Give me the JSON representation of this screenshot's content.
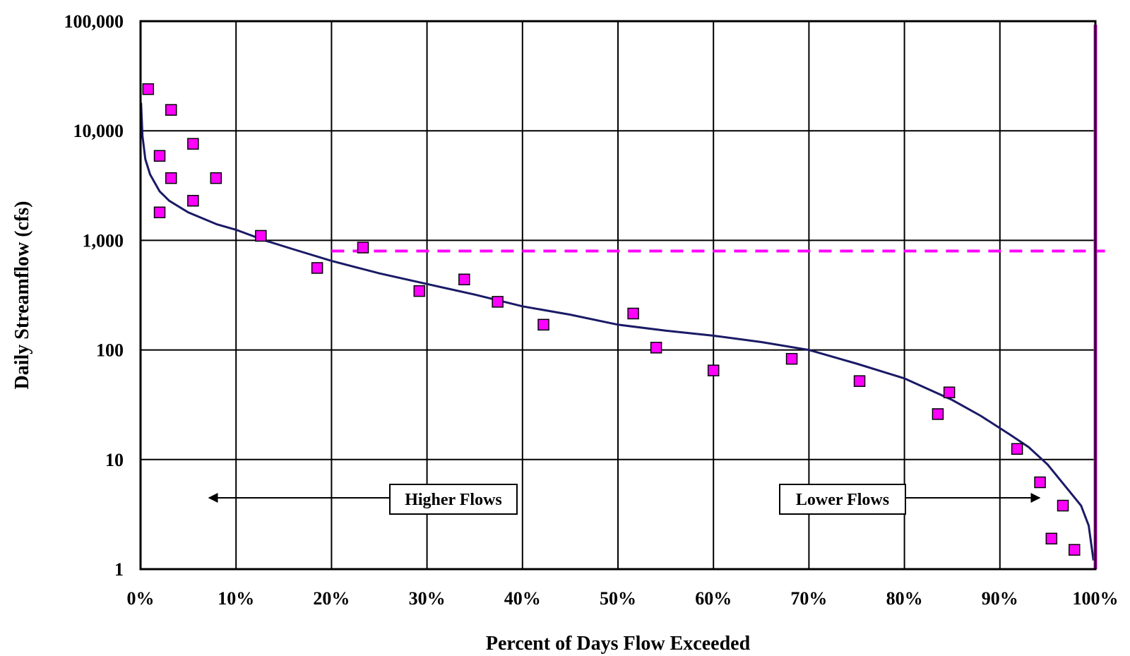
{
  "chart_data": {
    "type": "scatter",
    "title": "",
    "xlabel": "Percent of Days Flow Exceeded",
    "ylabel": "Daily Streamflow (cfs)",
    "x_unit": "%",
    "y_scale": "log",
    "xlim": [
      0,
      100
    ],
    "ylim": [
      1,
      100000
    ],
    "grid": true,
    "x_ticks": [
      0,
      10,
      20,
      30,
      40,
      50,
      60,
      70,
      80,
      90,
      100
    ],
    "x_tick_labels": [
      "0%",
      "10%",
      "20%",
      "30%",
      "40%",
      "50%",
      "60%",
      "70%",
      "80%",
      "90%",
      "100%"
    ],
    "y_ticks": [
      1,
      10,
      100,
      1000,
      10000,
      100000
    ],
    "y_tick_labels": [
      "1",
      "10",
      "100",
      "1,000",
      "10,000",
      "100,000"
    ],
    "series": [
      {
        "kind": "points",
        "marker": "square",
        "color": "#ff00ff",
        "points": [
          {
            "x": 0.8,
            "y": 24000
          },
          {
            "x": 3.2,
            "y": 15500
          },
          {
            "x": 2.0,
            "y": 5900
          },
          {
            "x": 5.5,
            "y": 7600
          },
          {
            "x": 3.2,
            "y": 3700
          },
          {
            "x": 7.9,
            "y": 3700
          },
          {
            "x": 5.5,
            "y": 2300
          },
          {
            "x": 2.0,
            "y": 1800
          },
          {
            "x": 12.6,
            "y": 1100
          },
          {
            "x": 18.5,
            "y": 560
          },
          {
            "x": 23.3,
            "y": 860
          },
          {
            "x": 29.2,
            "y": 345
          },
          {
            "x": 33.9,
            "y": 440
          },
          {
            "x": 37.4,
            "y": 275
          },
          {
            "x": 42.2,
            "y": 170
          },
          {
            "x": 51.6,
            "y": 215
          },
          {
            "x": 54.0,
            "y": 105
          },
          {
            "x": 60.0,
            "y": 65
          },
          {
            "x": 68.2,
            "y": 83
          },
          {
            "x": 75.3,
            "y": 52
          },
          {
            "x": 83.5,
            "y": 26
          },
          {
            "x": 84.7,
            "y": 41
          },
          {
            "x": 91.8,
            "y": 12.5
          },
          {
            "x": 94.2,
            "y": 6.2
          },
          {
            "x": 96.6,
            "y": 3.8
          },
          {
            "x": 95.4,
            "y": 1.9
          },
          {
            "x": 97.8,
            "y": 1.5
          }
        ]
      },
      {
        "kind": "line",
        "color": "#1a1a66",
        "points": [
          {
            "x": 0.05,
            "y": 18000
          },
          {
            "x": 0.2,
            "y": 9000
          },
          {
            "x": 0.5,
            "y": 5500
          },
          {
            "x": 1,
            "y": 4000
          },
          {
            "x": 2,
            "y": 2800
          },
          {
            "x": 3,
            "y": 2300
          },
          {
            "x": 5,
            "y": 1800
          },
          {
            "x": 8,
            "y": 1400
          },
          {
            "x": 10,
            "y": 1250
          },
          {
            "x": 13,
            "y": 1000
          },
          {
            "x": 16,
            "y": 830
          },
          {
            "x": 20,
            "y": 650
          },
          {
            "x": 25,
            "y": 500
          },
          {
            "x": 30,
            "y": 400
          },
          {
            "x": 35,
            "y": 320
          },
          {
            "x": 40,
            "y": 250
          },
          {
            "x": 45,
            "y": 210
          },
          {
            "x": 50,
            "y": 170
          },
          {
            "x": 55,
            "y": 150
          },
          {
            "x": 60,
            "y": 135
          },
          {
            "x": 65,
            "y": 118
          },
          {
            "x": 70,
            "y": 100
          },
          {
            "x": 75,
            "y": 75
          },
          {
            "x": 80,
            "y": 55
          },
          {
            "x": 85,
            "y": 35
          },
          {
            "x": 88,
            "y": 25
          },
          {
            "x": 91,
            "y": 17
          },
          {
            "x": 93,
            "y": 13
          },
          {
            "x": 95,
            "y": 9
          },
          {
            "x": 97,
            "y": 5.5
          },
          {
            "x": 98.5,
            "y": 3.8
          },
          {
            "x": 99.3,
            "y": 2.5
          },
          {
            "x": 99.8,
            "y": 1.2
          }
        ]
      }
    ],
    "reference_lines": [
      {
        "orientation": "horizontal",
        "value": 800,
        "from_x": 20,
        "to_x": 101,
        "style": "dashed",
        "color": "#ff00ff"
      },
      {
        "orientation": "vertical",
        "value": 100,
        "style": "solid",
        "color": "#ff00ff"
      }
    ],
    "annotations": [
      {
        "text": "Higher Flows",
        "arrow": "left"
      },
      {
        "text": "Lower Flows",
        "arrow": "right"
      }
    ]
  }
}
